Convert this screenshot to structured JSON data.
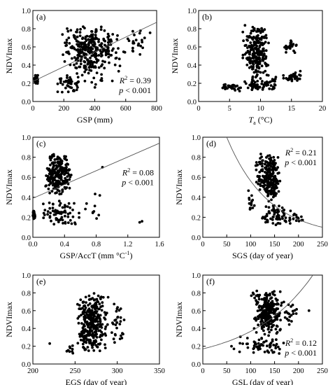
{
  "chart_data": [
    {
      "type": "scatter",
      "panel_label": "(a)",
      "xlabel": "GSP (mm)",
      "ylabel": "NDVImax",
      "xlim": [
        0,
        800
      ],
      "ylim": [
        0,
        1.0
      ],
      "xticks": [
        "0",
        "200",
        "400",
        "600",
        "800"
      ],
      "yticks": [
        "0.0",
        "0.2",
        "0.4",
        "0.6",
        "0.8",
        "1.0"
      ],
      "fit": {
        "kind": "linear",
        "x": [
          0,
          800
        ],
        "y": [
          0.22,
          0.87
        ]
      },
      "annotation": {
        "r2_prefix": "R",
        "r2_sup": "2",
        "r2_value": " = 0.39",
        "p_text": "p",
        "p_value": " < 0.001",
        "position": "bottom-right"
      },
      "clusters": [
        {
          "n": 40,
          "x": [
            5,
            40
          ],
          "y": [
            0.18,
            0.3
          ]
        },
        {
          "n": 40,
          "x": [
            140,
            320
          ],
          "y": [
            0.08,
            0.3
          ]
        },
        {
          "n": 240,
          "x": [
            180,
            560
          ],
          "y": [
            0.35,
            0.85
          ]
        },
        {
          "n": 60,
          "x": [
            180,
            600
          ],
          "y": [
            0.15,
            0.6
          ]
        },
        {
          "n": 25,
          "x": [
            560,
            780
          ],
          "y": [
            0.5,
            0.8
          ]
        }
      ]
    },
    {
      "type": "scatter",
      "panel_label": "(b)",
      "xlabel_italic": "T",
      "xlabel_sub": "a",
      "xlabel_rest": " (°C)",
      "ylabel": "NDVImax",
      "xlim": [
        0,
        20
      ],
      "ylim": [
        0,
        1.0
      ],
      "xticks": [
        "0",
        "5",
        "10",
        "15",
        "20"
      ],
      "yticks": [
        "0.0",
        "0.2",
        "0.4",
        "0.6",
        "0.8",
        "1.0"
      ],
      "clusters": [
        {
          "n": 220,
          "x": [
            7,
            11.5
          ],
          "y": [
            0.25,
            0.85
          ]
        },
        {
          "n": 50,
          "x": [
            7,
            11.5
          ],
          "y": [
            0.08,
            0.28
          ]
        },
        {
          "n": 30,
          "x": [
            3,
            7
          ],
          "y": [
            0.1,
            0.2
          ]
        },
        {
          "n": 30,
          "x": [
            13.5,
            17
          ],
          "y": [
            0.2,
            0.35
          ]
        },
        {
          "n": 25,
          "x": [
            13.5,
            16
          ],
          "y": [
            0.5,
            0.7
          ]
        },
        {
          "n": 20,
          "x": [
            11,
            13
          ],
          "y": [
            0.12,
            0.3
          ]
        }
      ]
    },
    {
      "type": "scatter",
      "panel_label": "(c)",
      "xlabel_main": "GSP/AccT (mm °C",
      "xlabel_sup": "-1",
      "xlabel_end": ")",
      "ylabel": "NDVImax",
      "xlim": [
        0,
        1.6
      ],
      "ylim": [
        0,
        1.0
      ],
      "xticks": [
        "0.0",
        "0.4",
        "0.8",
        "1.2",
        "1.6"
      ],
      "yticks": [
        "0.0",
        "0.2",
        "0.4",
        "0.6",
        "0.8",
        "1.0"
      ],
      "fit": {
        "kind": "linear",
        "x": [
          0,
          1.6
        ],
        "y": [
          0.39,
          0.94
        ]
      },
      "annotation": {
        "r2_prefix": "R",
        "r2_sup": "2",
        "r2_value": " = 0.08",
        "p_text": "p",
        "p_value": " < 0.001",
        "position": "middle-right"
      },
      "clusters": [
        {
          "n": 230,
          "x": [
            0.15,
            0.5
          ],
          "y": [
            0.4,
            0.85
          ]
        },
        {
          "n": 70,
          "x": [
            0.08,
            0.6
          ],
          "y": [
            0.1,
            0.4
          ]
        },
        {
          "n": 30,
          "x": [
            0,
            0.03
          ],
          "y": [
            0.15,
            0.3
          ]
        },
        {
          "n": 10,
          "x": [
            0.6,
            0.9
          ],
          "y": [
            0.15,
            0.6
          ]
        }
      ],
      "extra_points": [
        [
          1.35,
          0.15
        ],
        [
          1.38,
          0.16
        ],
        [
          0.88,
          0.7
        ]
      ]
    },
    {
      "type": "scatter",
      "panel_label": "(d)",
      "xlabel": "SGS (day of year)",
      "ylabel": "NDVImax",
      "xlim": [
        0,
        250
      ],
      "ylim": [
        0,
        1.0
      ],
      "xticks": [
        "0",
        "50",
        "100",
        "150",
        "200",
        "250"
      ],
      "yticks": [
        "0.0",
        "0.2",
        "0.4",
        "0.6",
        "0.8",
        "1.0"
      ],
      "fit": {
        "kind": "exponential",
        "x0": 50,
        "y0": 1.0,
        "x1": 250,
        "y1": 0.1
      },
      "annotation": {
        "r2_prefix": "R",
        "r2_sup": "2",
        "r2_value": " = 0.21",
        "p_text": "p",
        "p_value": " < 0.001",
        "position": "top-right"
      },
      "clusters": [
        {
          "n": 230,
          "x": [
            110,
            165
          ],
          "y": [
            0.35,
            0.85
          ]
        },
        {
          "n": 70,
          "x": [
            120,
            190
          ],
          "y": [
            0.1,
            0.35
          ]
        },
        {
          "n": 15,
          "x": [
            90,
            110
          ],
          "y": [
            0.15,
            0.5
          ]
        },
        {
          "n": 15,
          "x": [
            180,
            210
          ],
          "y": [
            0.12,
            0.25
          ]
        }
      ]
    },
    {
      "type": "scatter",
      "panel_label": "(e)",
      "xlabel": "EGS (day of year)",
      "ylabel": "NDVImax",
      "xlim": [
        200,
        350
      ],
      "ylim": [
        0,
        1.0
      ],
      "xticks": [
        "200",
        "250",
        "300",
        "350"
      ],
      "yticks": [
        "0.0",
        "0.2",
        "0.4",
        "0.6",
        "0.8",
        "1.0"
      ],
      "clusters": [
        {
          "n": 300,
          "x": [
            250,
            290
          ],
          "y": [
            0.1,
            0.85
          ]
        },
        {
          "n": 30,
          "x": [
            290,
            310
          ],
          "y": [
            0.2,
            0.7
          ]
        },
        {
          "n": 10,
          "x": [
            240,
            250
          ],
          "y": [
            0.1,
            0.25
          ]
        }
      ],
      "extra_points": [
        [
          220,
          0.23
        ]
      ]
    },
    {
      "type": "scatter",
      "panel_label": "(f)",
      "xlabel": "GSL (day of year)",
      "ylabel": "NDVImax",
      "xlim": [
        0,
        250
      ],
      "ylim": [
        0,
        1.0
      ],
      "xticks": [
        "0",
        "50",
        "100",
        "150",
        "200",
        "250"
      ],
      "yticks": [
        "0.0",
        "0.2",
        "0.4",
        "0.6",
        "0.8",
        "1.0"
      ],
      "fit": {
        "kind": "exponential",
        "x0": 0,
        "y0": 0.17,
        "x1": 230,
        "y1": 1.0
      },
      "annotation": {
        "r2_prefix": "R",
        "r2_sup": "2",
        "r2_value": " = 0.12",
        "p_text": "p",
        "p_value": " < 0.001",
        "position": "bottom-right"
      },
      "clusters": [
        {
          "n": 240,
          "x": [
            100,
            170
          ],
          "y": [
            0.3,
            0.85
          ]
        },
        {
          "n": 60,
          "x": [
            70,
            170
          ],
          "y": [
            0.1,
            0.35
          ]
        },
        {
          "n": 20,
          "x": [
            170,
            200
          ],
          "y": [
            0.4,
            0.7
          ]
        }
      ],
      "extra_points": [
        [
          60,
          0.2
        ],
        [
          65,
          0.17
        ],
        [
          222,
          0.6
        ]
      ]
    }
  ]
}
